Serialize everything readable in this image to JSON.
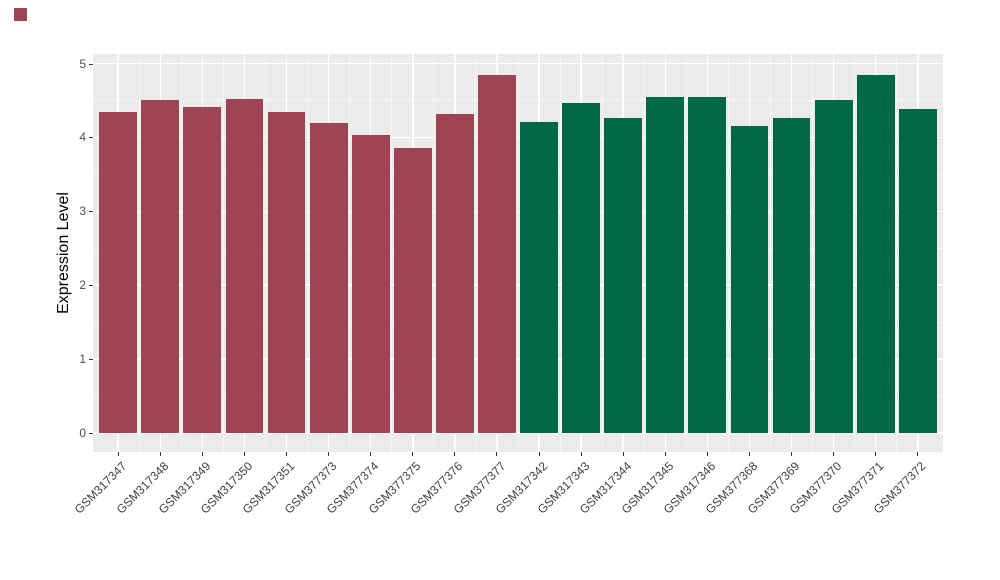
{
  "chart_data": {
    "type": "bar",
    "title": "",
    "xlabel": "",
    "ylabel": "Expression Level",
    "categories": [
      "GSM317347",
      "GSM317348",
      "GSM317349",
      "GSM317350",
      "GSM317351",
      "GSM377373",
      "GSM377374",
      "GSM377375",
      "GSM377376",
      "GSM377377",
      "GSM317342",
      "GSM317343",
      "GSM317344",
      "GSM317345",
      "GSM317346",
      "GSM377368",
      "GSM377369",
      "GSM377370",
      "GSM377371",
      "GSM377372"
    ],
    "values": [
      4.35,
      4.5,
      4.41,
      4.52,
      4.35,
      4.19,
      4.03,
      3.86,
      4.32,
      4.84,
      4.21,
      4.46,
      4.26,
      4.54,
      4.54,
      4.15,
      4.26,
      4.5,
      4.85,
      4.38
    ],
    "bar_groups": [
      1,
      1,
      1,
      1,
      1,
      1,
      1,
      1,
      1,
      1,
      2,
      2,
      2,
      2,
      2,
      2,
      2,
      2,
      2,
      2
    ],
    "group_colors": {
      "1": "#9E4452",
      "2": "#006747"
    },
    "ylim": [
      0,
      5
    ],
    "yticks": [
      0,
      1,
      2,
      3,
      4,
      5
    ],
    "y_minor_ticks": [
      0.5,
      1.5,
      2.5,
      3.5,
      4.5
    ],
    "grid": "major and minor white gridlines on grey panel, horizontal and vertical",
    "legend": "none",
    "panel_bg": "#EBEBEB",
    "grid_color": "#FFFFFF",
    "corner_marker_color": "#9E4452"
  }
}
